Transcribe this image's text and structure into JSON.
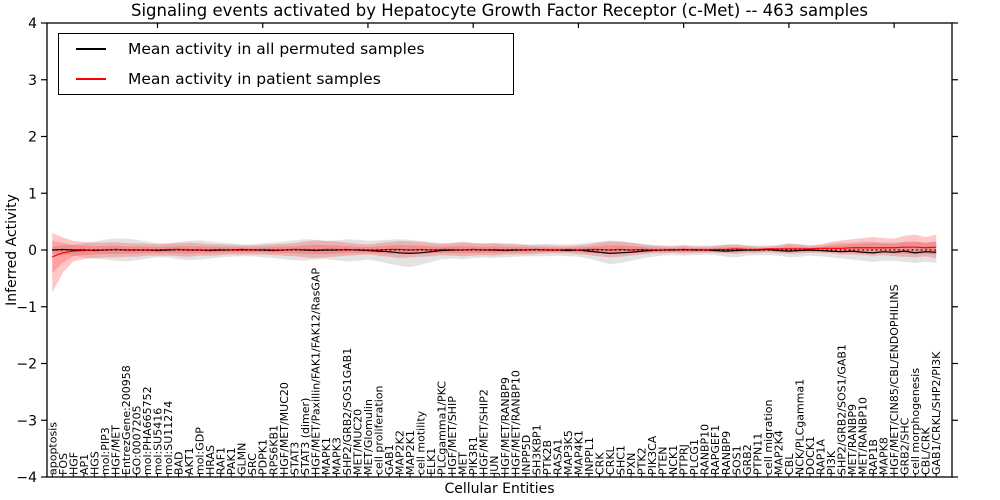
{
  "title": "Signaling events activated by Hepatocyte Growth Factor Receptor (c-Met) -- 463 samples",
  "axes": {
    "xlabel": "Cellular Entities",
    "ylabel": "Inferred Activity",
    "ytick_values": [
      4,
      3,
      2,
      1,
      0,
      -1,
      -2,
      -3,
      -4
    ],
    "ytick_labels": [
      "4",
      "3",
      "2",
      "1",
      "0",
      "−1",
      "−2",
      "−3",
      "−4"
    ],
    "xtick_major_every": 10
  },
  "legend": {
    "entries": [
      {
        "label": "Mean activity in all permuted samples",
        "color": "#000000"
      },
      {
        "label": "Mean activity in patient samples",
        "color": "#ff0000"
      }
    ]
  },
  "colors": {
    "permuted_line": "#000000",
    "patient_line": "#ff0000",
    "permuted_band": "#999999",
    "patient_band": "#ff2222",
    "zero_line": "#000000",
    "axis": "#000000"
  },
  "chart_data": {
    "type": "line",
    "title": "Signaling events activated by Hepatocyte Growth Factor Receptor (c-Met) -- 463 samples",
    "xlabel": "Cellular Entities",
    "ylabel": "Inferred Activity",
    "ylim": [
      -4,
      4
    ],
    "grid": false,
    "legend_position": "upper left",
    "categories": [
      "apoptosis",
      "FOS",
      "HGF",
      "AP1",
      "HGS",
      "mol:PIP3",
      "HGF/MET",
      "EntrezGene:200958",
      "GO:0007205",
      "mol:PHA665752",
      "mol:SU5416",
      "mol:SU11274",
      "BAD",
      "AKT1",
      "mol:GDP",
      "HRAS",
      "RAF1",
      "PAK1",
      "GLMN",
      "SRC",
      "PDPK1",
      "RPS6KB1",
      "HGF/MET/MUC20",
      "STAT3",
      "STAT3 (dimer)",
      "HGF/MET/Paxillin/FAK1/FAK12/RasGAP",
      "MAPK1",
      "MAPK3",
      "SHP2/GRB2/SOS1GAB1",
      "MET/MUC20",
      "MET/Glomulin",
      "cell proliferation",
      "GAB1",
      "MAP2K2",
      "MAP2K1",
      "cell motility",
      "ELK1",
      "PLCgamma1/PKC",
      "HGF/MET/SHIP",
      "MET",
      "PIK3R1",
      "HGF/MET/SHIP2",
      "JUN",
      "HGF/MET/RANBP9",
      "HGF/MET/RANBP10",
      "INPP5D",
      "SH3KBP1",
      "PTK2B",
      "RASA1",
      "MAP3K5",
      "MAP4K1",
      "INPPL1",
      "CRK",
      "CRKL",
      "SHC1",
      "PXN",
      "PTK2",
      "PIK3CA",
      "PTEN",
      "NCK1",
      "PTPRJ",
      "PLCG1",
      "RANBP10",
      "RAPGEF1",
      "RANBP9",
      "SOS1",
      "GRB2",
      "PTPN11",
      "cell migration",
      "MAP2K4",
      "CBL",
      "NCK/PLCgamma1",
      "DOCK1",
      "RAP1A",
      "PI3K",
      "SHP2/GRB2/SOS1/GAB1",
      "MET/RANBP9",
      "MET/RANBP10",
      "RAP1B",
      "MAPK8",
      "HGF/MET/CIN85/CBL/ENDOPHILINS",
      "GRB2/SHC",
      "cell morphogenesis",
      "CBL/CRK",
      "GAB1/CRKL/SHP2/PI3K"
    ],
    "series": [
      {
        "name": "Mean activity in all permuted samples",
        "data_name": "permuted-mean-line",
        "color": "#000000",
        "values": [
          0.0,
          0.01,
          0.0,
          0.0,
          -0.01,
          0.0,
          0.01,
          0.0,
          0.0,
          0.0,
          -0.01,
          0.0,
          0.01,
          0.0,
          0.0,
          -0.01,
          0.0,
          0.0,
          0.01,
          0.0,
          0.0,
          -0.01,
          0.0,
          0.01,
          0.0,
          -0.01,
          0.0,
          0.0,
          0.01,
          0.0,
          -0.01,
          -0.02,
          -0.03,
          -0.05,
          -0.06,
          -0.05,
          -0.03,
          -0.01,
          0.0,
          0.0,
          0.01,
          0.0,
          0.0,
          -0.01,
          0.0,
          0.0,
          0.01,
          0.0,
          0.0,
          -0.01,
          0.0,
          -0.02,
          -0.04,
          -0.06,
          -0.05,
          -0.04,
          -0.02,
          -0.01,
          0.0,
          0.0,
          0.01,
          0.0,
          0.0,
          -0.01,
          -0.02,
          -0.01,
          0.0,
          0.0,
          0.01,
          -0.01,
          -0.02,
          -0.01,
          0.0,
          -0.01,
          -0.02,
          -0.03,
          -0.02,
          -0.04,
          -0.05,
          -0.03,
          -0.04,
          -0.02,
          -0.05,
          -0.03,
          -0.04
        ]
      },
      {
        "name": "Mean activity in patient samples",
        "data_name": "patient-mean-line",
        "color": "#ff0000",
        "values": [
          -0.12,
          -0.05,
          -0.02,
          -0.01,
          0.0,
          0.0,
          0.01,
          0.0,
          0.0,
          0.0,
          0.0,
          0.01,
          0.01,
          0.0,
          0.0,
          0.0,
          0.01,
          0.0,
          0.0,
          0.0,
          0.01,
          0.0,
          0.0,
          0.01,
          0.01,
          0.0,
          0.01,
          0.01,
          0.0,
          0.01,
          0.0,
          0.0,
          0.01,
          0.01,
          0.0,
          0.01,
          0.0,
          0.01,
          0.01,
          0.0,
          0.01,
          0.0,
          0.01,
          0.0,
          0.01,
          0.0,
          0.01,
          0.0,
          0.0,
          0.01,
          0.0,
          0.01,
          0.01,
          0.0,
          0.01,
          0.0,
          0.01,
          0.0,
          0.0,
          0.01,
          0.0,
          0.01,
          0.0,
          0.01,
          0.01,
          0.02,
          0.01,
          0.01,
          0.02,
          0.02,
          0.02,
          0.02,
          0.02,
          0.03,
          0.03,
          0.03,
          0.04,
          0.04,
          0.04,
          0.04,
          0.04,
          0.05,
          0.05,
          0.04,
          0.05
        ]
      }
    ],
    "bands": [
      {
        "name": "permuted-samples-band",
        "color": "#999999",
        "opacity": 0.28,
        "inner_scale": null,
        "upper": [
          0.06,
          0.08,
          0.1,
          0.12,
          0.15,
          0.18,
          0.2,
          0.2,
          0.18,
          0.15,
          0.12,
          0.12,
          0.14,
          0.16,
          0.17,
          0.15,
          0.13,
          0.12,
          0.1,
          0.1,
          0.12,
          0.13,
          0.15,
          0.17,
          0.19,
          0.18,
          0.16,
          0.17,
          0.19,
          0.18,
          0.16,
          0.17,
          0.18,
          0.19,
          0.18,
          0.16,
          0.14,
          0.12,
          0.13,
          0.15,
          0.13,
          0.12,
          0.13,
          0.12,
          0.12,
          0.1,
          0.1,
          0.11,
          0.1,
          0.1,
          0.11,
          0.13,
          0.15,
          0.17,
          0.15,
          0.13,
          0.11,
          0.09,
          0.08,
          0.08,
          0.09,
          0.08,
          0.08,
          0.08,
          0.1,
          0.1,
          0.08,
          0.08,
          0.08,
          0.09,
          0.11,
          0.1,
          0.08,
          0.09,
          0.11,
          0.13,
          0.13,
          0.15,
          0.15,
          0.13,
          0.13,
          0.15,
          0.15,
          0.13,
          0.15
        ],
        "lower": [
          -0.06,
          -0.08,
          -0.1,
          -0.13,
          -0.15,
          -0.17,
          -0.19,
          -0.2,
          -0.18,
          -0.15,
          -0.13,
          -0.13,
          -0.16,
          -0.18,
          -0.17,
          -0.15,
          -0.13,
          -0.12,
          -0.11,
          -0.11,
          -0.13,
          -0.14,
          -0.16,
          -0.18,
          -0.19,
          -0.17,
          -0.16,
          -0.18,
          -0.2,
          -0.19,
          -0.17,
          -0.2,
          -0.24,
          -0.28,
          -0.3,
          -0.26,
          -0.21,
          -0.16,
          -0.15,
          -0.16,
          -0.14,
          -0.13,
          -0.14,
          -0.13,
          -0.12,
          -0.11,
          -0.11,
          -0.11,
          -0.1,
          -0.11,
          -0.12,
          -0.15,
          -0.2,
          -0.25,
          -0.23,
          -0.19,
          -0.15,
          -0.12,
          -0.1,
          -0.09,
          -0.1,
          -0.09,
          -0.08,
          -0.09,
          -0.12,
          -0.13,
          -0.1,
          -0.09,
          -0.09,
          -0.1,
          -0.13,
          -0.12,
          -0.1,
          -0.11,
          -0.13,
          -0.15,
          -0.17,
          -0.19,
          -0.21,
          -0.19,
          -0.19,
          -0.21,
          -0.23,
          -0.21,
          -0.23
        ]
      },
      {
        "name": "patient-samples-band",
        "color": "#ff2222",
        "opacity": 0.25,
        "inner_scale": 0.55,
        "upper": [
          0.3,
          0.22,
          0.16,
          0.14,
          0.13,
          0.13,
          0.14,
          0.12,
          0.12,
          0.11,
          0.1,
          0.11,
          0.12,
          0.13,
          0.12,
          0.1,
          0.1,
          0.09,
          0.08,
          0.08,
          0.09,
          0.1,
          0.11,
          0.12,
          0.15,
          0.17,
          0.16,
          0.15,
          0.13,
          0.11,
          0.1,
          0.12,
          0.14,
          0.16,
          0.15,
          0.14,
          0.12,
          0.11,
          0.12,
          0.13,
          0.12,
          0.11,
          0.12,
          0.1,
          0.1,
          0.09,
          0.08,
          0.08,
          0.07,
          0.07,
          0.08,
          0.1,
          0.13,
          0.15,
          0.15,
          0.13,
          0.1,
          0.08,
          0.07,
          0.06,
          0.08,
          0.06,
          0.06,
          0.07,
          0.09,
          0.1,
          0.08,
          0.06,
          0.06,
          0.08,
          0.12,
          0.1,
          0.08,
          0.1,
          0.14,
          0.17,
          0.19,
          0.21,
          0.23,
          0.21,
          0.2,
          0.25,
          0.27,
          0.23,
          0.27
        ],
        "lower": [
          -0.75,
          -0.4,
          -0.2,
          -0.16,
          -0.14,
          -0.13,
          -0.13,
          -0.12,
          -0.12,
          -0.1,
          -0.1,
          -0.1,
          -0.11,
          -0.12,
          -0.1,
          -0.1,
          -0.09,
          -0.08,
          -0.08,
          -0.08,
          -0.08,
          -0.09,
          -0.1,
          -0.11,
          -0.13,
          -0.14,
          -0.13,
          -0.12,
          -0.1,
          -0.09,
          -0.08,
          -0.1,
          -0.12,
          -0.14,
          -0.13,
          -0.12,
          -0.11,
          -0.09,
          -0.1,
          -0.11,
          -0.1,
          -0.09,
          -0.1,
          -0.08,
          -0.08,
          -0.08,
          -0.07,
          -0.06,
          -0.06,
          -0.06,
          -0.07,
          -0.09,
          -0.11,
          -0.13,
          -0.12,
          -0.1,
          -0.08,
          -0.06,
          -0.06,
          -0.05,
          -0.06,
          -0.05,
          -0.05,
          -0.05,
          -0.06,
          -0.07,
          -0.05,
          -0.05,
          -0.04,
          -0.05,
          -0.07,
          -0.06,
          -0.05,
          -0.05,
          -0.06,
          -0.08,
          -0.08,
          -0.09,
          -0.1,
          -0.09,
          -0.11,
          -0.12,
          -0.13,
          -0.11,
          -0.15
        ]
      }
    ]
  }
}
